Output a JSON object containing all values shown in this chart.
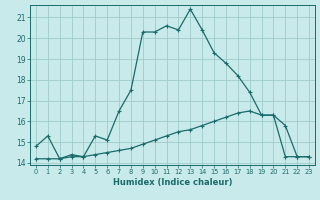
{
  "title": "",
  "xlabel": "Humidex (Indice chaleur)",
  "bg_color": "#c8eaea",
  "grid_color": "#a0cccc",
  "line_color": "#1a6b6b",
  "xlim": [
    -0.5,
    23.5
  ],
  "ylim": [
    13.9,
    21.6
  ],
  "yticks": [
    14,
    15,
    16,
    17,
    18,
    19,
    20,
    21
  ],
  "xticks": [
    0,
    1,
    2,
    3,
    4,
    5,
    6,
    7,
    8,
    9,
    10,
    11,
    12,
    13,
    14,
    15,
    16,
    17,
    18,
    19,
    20,
    21,
    22,
    23
  ],
  "series1_x": [
    0,
    1,
    2,
    3,
    4,
    5,
    6,
    7,
    8,
    9,
    10,
    11,
    12,
    13,
    14,
    15,
    16,
    17,
    18,
    19,
    20,
    21,
    22,
    23
  ],
  "series1_y": [
    14.8,
    15.3,
    14.2,
    14.4,
    14.3,
    15.3,
    15.1,
    16.5,
    17.5,
    20.3,
    20.3,
    20.6,
    20.4,
    21.4,
    20.4,
    19.3,
    18.8,
    18.2,
    17.4,
    16.3,
    16.3,
    15.8,
    14.3,
    14.3
  ],
  "series2_x": [
    0,
    1,
    2,
    3,
    4,
    5,
    6,
    7,
    8,
    9,
    10,
    11,
    12,
    13,
    14,
    15,
    16,
    17,
    18,
    19,
    20,
    21,
    22,
    23
  ],
  "series2_y": [
    14.2,
    14.2,
    14.2,
    14.3,
    14.3,
    14.4,
    14.5,
    14.6,
    14.7,
    14.9,
    15.1,
    15.3,
    15.5,
    15.6,
    15.8,
    16.0,
    16.2,
    16.4,
    16.5,
    16.3,
    16.3,
    14.3,
    14.3,
    14.3
  ]
}
